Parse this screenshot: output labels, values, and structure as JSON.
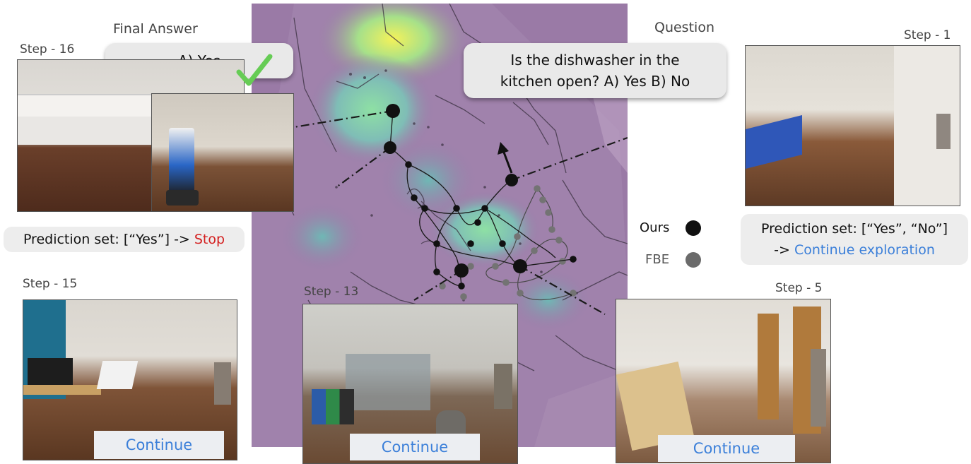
{
  "question": {
    "label": "Question",
    "text_line1": "Is the dishwasher in the",
    "text_line2": "kitchen open? A) Yes B) No"
  },
  "final_answer": {
    "label": "Final Answer",
    "text": "A) Yes"
  },
  "steps": {
    "step16": {
      "label": "Step - 16",
      "prediction_prefix": "Prediction set: [“Yes”] -> ",
      "prediction_action": "Stop"
    },
    "step1": {
      "label": "Step - 1",
      "prediction_line1": "Prediction set: [“Yes”, “No”]",
      "prediction_prefix": "-> ",
      "prediction_action": "Continue exploration"
    },
    "step15": {
      "label": "Step - 15",
      "button": "Continue"
    },
    "step13": {
      "label": "Step - 13",
      "button": "Continue"
    },
    "step5": {
      "label": "Step - 5",
      "button": "Continue"
    }
  },
  "legend": {
    "ours": "Ours",
    "fbe": "FBE"
  },
  "colors": {
    "map_bg": "#9a7aa6",
    "ours": "#111111",
    "fbe": "#6b6b6b",
    "stop": "#d42020",
    "continue": "#3b7fd9",
    "check": "#66cc55"
  }
}
